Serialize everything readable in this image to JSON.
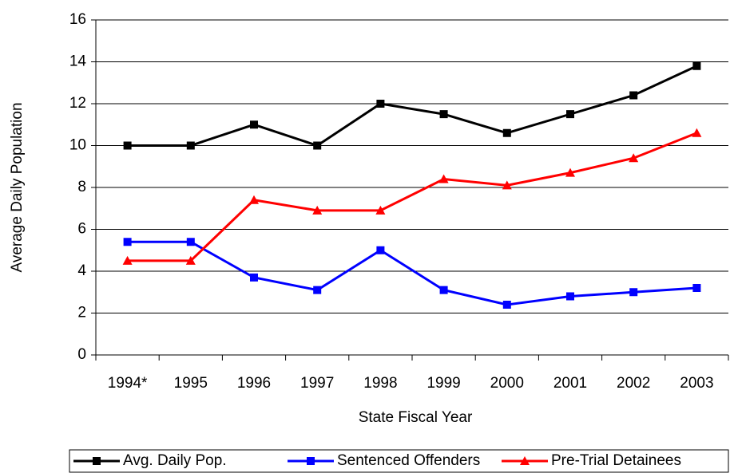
{
  "chart_data": {
    "type": "line",
    "x_label": "State Fiscal Year",
    "y_label": "Average Daily Population",
    "categories": [
      "1994*",
      "1995",
      "1996",
      "1997",
      "1998",
      "1999",
      "2000",
      "2001",
      "2002",
      "2003"
    ],
    "series": [
      {
        "name": "Avg. Daily Pop.",
        "color": "#000000",
        "marker": "square",
        "values": [
          10,
          10,
          11,
          10,
          12,
          11.5,
          10.6,
          11.5,
          12.4,
          13.8
        ]
      },
      {
        "name": "Sentenced Offenders",
        "color": "#0000ff",
        "marker": "square",
        "values": [
          5.4,
          5.4,
          3.7,
          3.1,
          5.0,
          3.1,
          2.4,
          2.8,
          3.0,
          3.2
        ]
      },
      {
        "name": "Pre-Trial Detainees",
        "color": "#ff0000",
        "marker": "triangle",
        "values": [
          4.5,
          4.5,
          7.4,
          6.9,
          6.9,
          8.4,
          8.1,
          8.7,
          9.4,
          10.6
        ]
      }
    ],
    "ylim": [
      0,
      16
    ],
    "yticks": [
      0,
      2,
      4,
      6,
      8,
      10,
      12,
      14,
      16
    ],
    "grid": true,
    "legend": "bottom"
  }
}
